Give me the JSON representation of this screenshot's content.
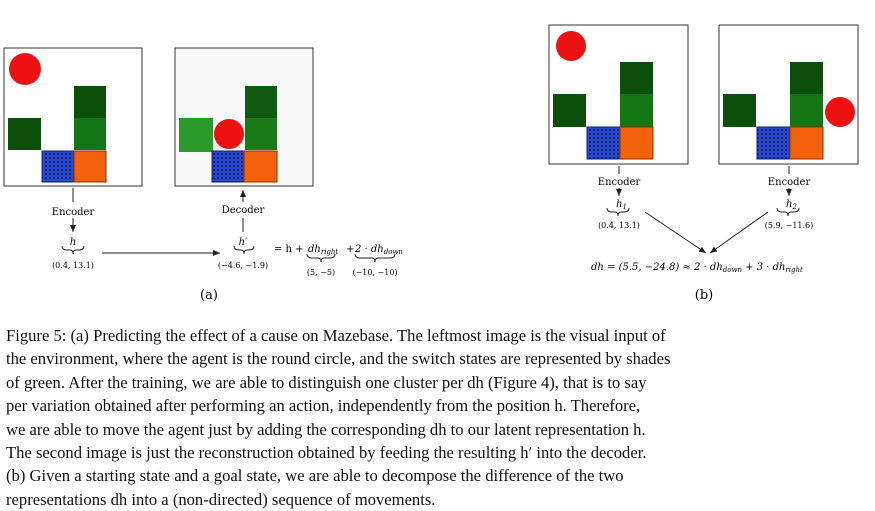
{
  "figure": {
    "a": {
      "encoder_label": "Encoder",
      "decoder_label": "Decoder",
      "h_symbol": "h",
      "h_value": "(0.4,  13.1)",
      "hprime_symbol": "h′",
      "hprime_value": "(−4.6,  −1.9)",
      "equation_prefix": "= h +",
      "dh_right_term": "dh",
      "dh_right_sub": "right",
      "dh_right_value": "(5,  −5)",
      "plus": "+",
      "dh_down_term": "2 · dh",
      "dh_down_sub": "down",
      "dh_down_value": "(−10,  −10)",
      "panel_label": "(a)"
    },
    "b": {
      "encoder1_label": "Encoder",
      "encoder2_label": "Encoder",
      "h1_symbol": "h",
      "h1_sub": "1",
      "h1_value": "(0.4,  13.1)",
      "h2_symbol": "h",
      "h2_sub": "2",
      "h2_value": "(5.9,  −11.6)",
      "dh_eq_lhs": "dh = (5.5,  −24.8) ≈ 2 · dh",
      "dh_eq_sub1": "down",
      "dh_eq_mid": " + 3 · dh",
      "dh_eq_sub2": "right",
      "panel_label": "(b)"
    },
    "colors": {
      "agent_red": "#ee1111",
      "dark_green": "#0b4f0b",
      "mid_green": "#137513",
      "switch_blue": "#2a49c9",
      "goal_orange": "#f2620a"
    }
  },
  "caption": {
    "lines": [
      "Figure 5: (a) Predicting the effect of a cause on Mazebase. The leftmost image is the visual input of",
      "the environment, where the agent is the round circle, and the switch states are represented by shades",
      "of green. After the training, we are able to distinguish one cluster per dh (Figure 4), that is to say",
      "per variation obtained after performing an action, independently from the position h. Therefore,",
      "we are able to move the agent just by adding the corresponding dh to our latent representation h.",
      "The second image is just the reconstruction obtained by feeding the resulting h′ into the decoder.",
      "(b) Given a starting state and a goal state, we are able to decompose the difference of the two",
      "representations dh into a (non-directed) sequence of movements."
    ]
  }
}
